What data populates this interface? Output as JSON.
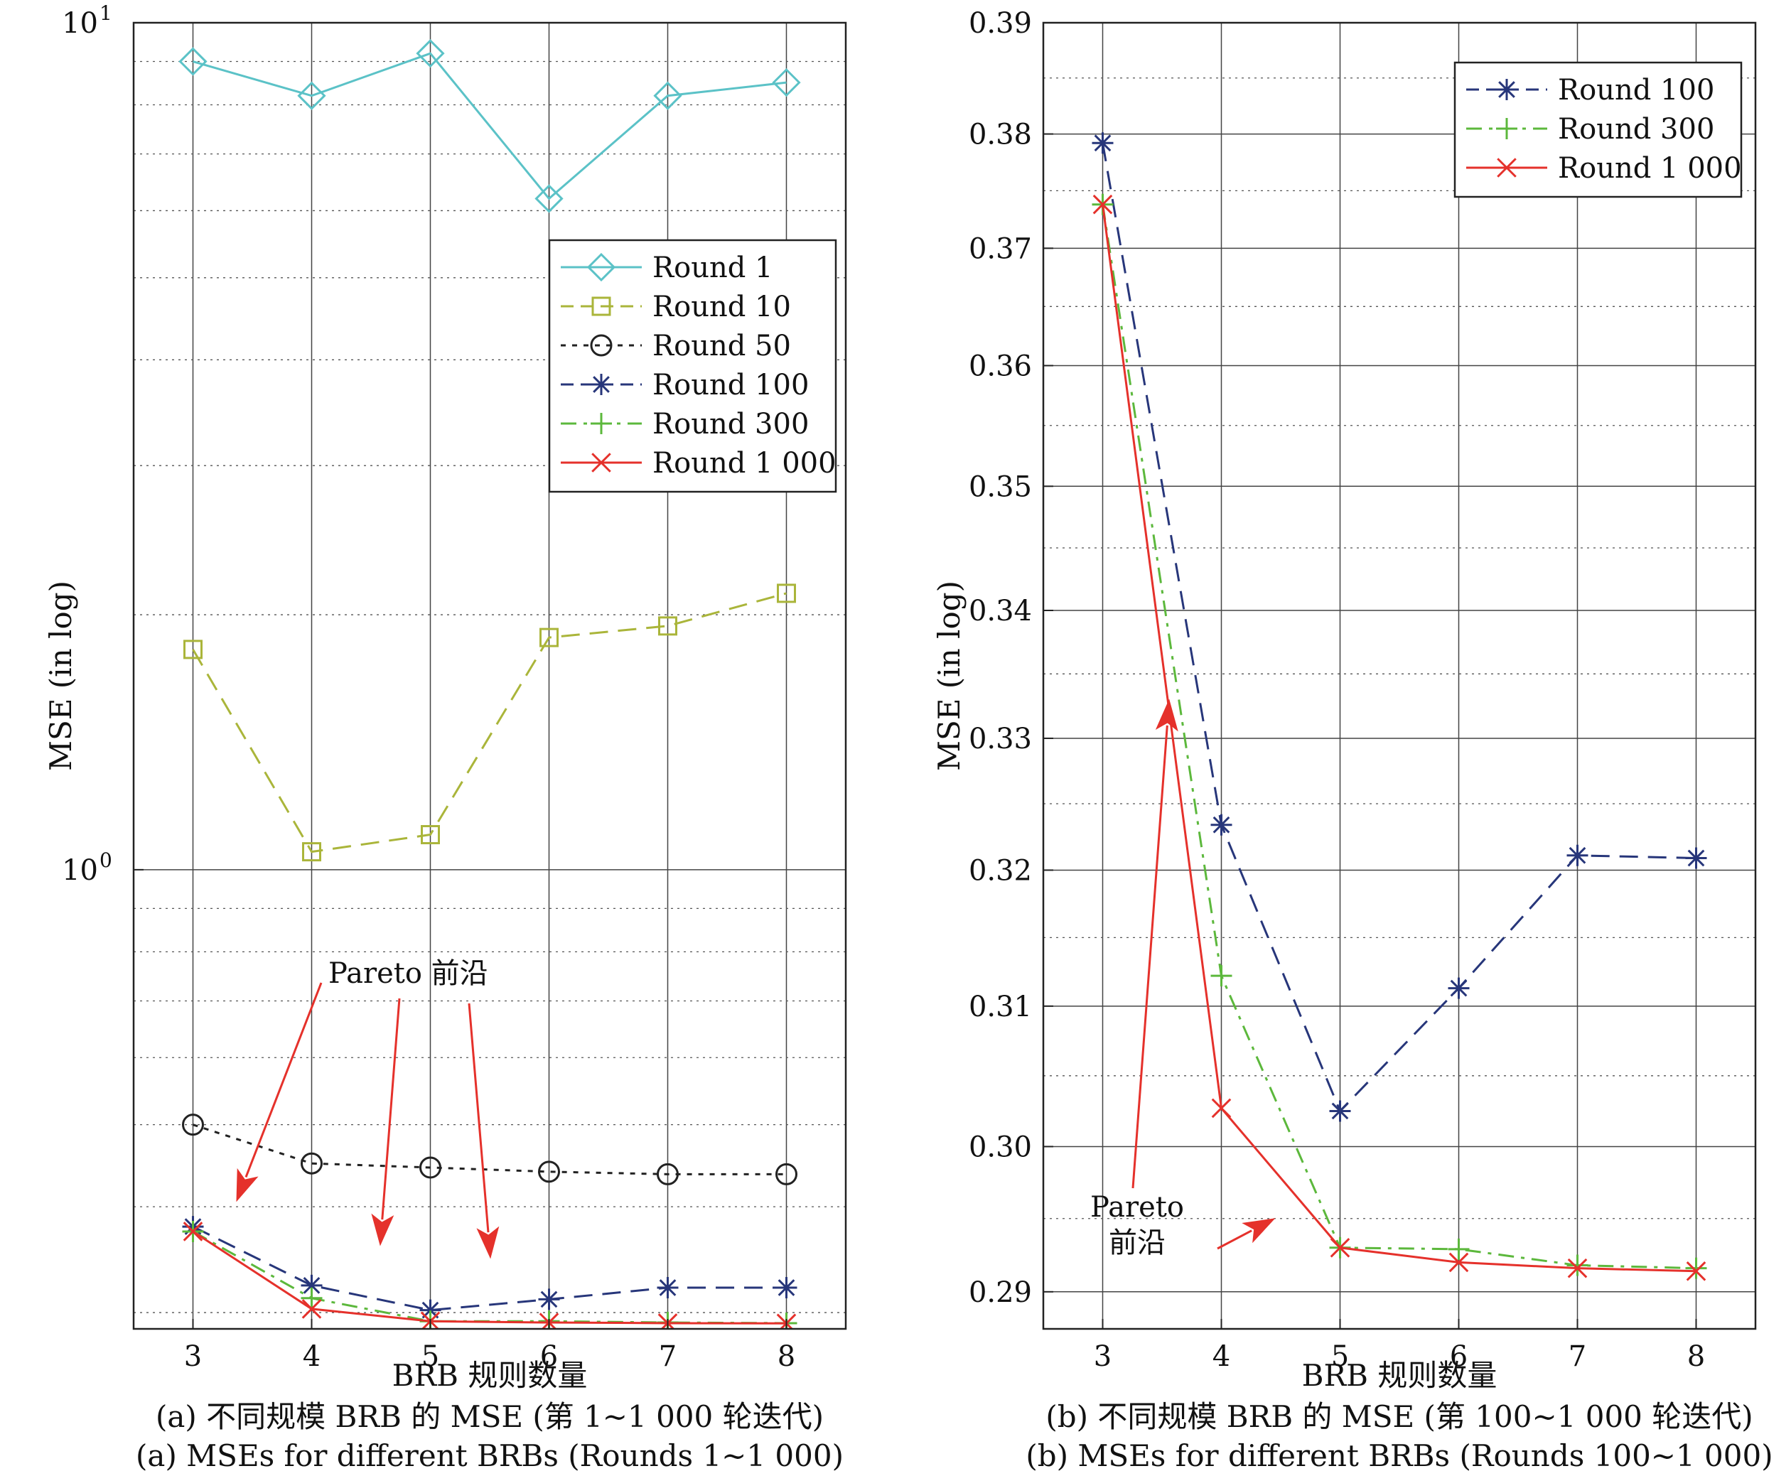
{
  "captions": {
    "left_cn": "(a) 不同规模 BRB 的 MSE (第 1~1 000 轮迭代)",
    "left_en": "(a) MSEs for different BRBs (Rounds 1~1 000)",
    "right_cn": "(b) 不同规模 BRB 的 MSE (第 100~1 000 轮迭代)",
    "right_en": "(b) MSEs for different BRBs (Rounds 100~1 000)"
  },
  "colors": {
    "round1": "#5bc2c7",
    "round10": "#aab53a",
    "round50": "#222222",
    "round100": "#27367a",
    "round300": "#5cb83c",
    "round1000": "#e5312b",
    "arrow": "#e5312b"
  },
  "chart_data": [
    {
      "type": "line",
      "xlabel": "BRB 规则数量",
      "ylabel": "MSE (in log)",
      "yscale": "log",
      "ylim": [
        0.287,
        10
      ],
      "xlim": [
        2.5,
        8.5
      ],
      "x": [
        3,
        4,
        5,
        6,
        7,
        8
      ],
      "x_tick_labels": [
        "3",
        "4",
        "5",
        "6",
        "7",
        "8"
      ],
      "y_tick_labels": [
        {
          "value": 10,
          "base": "10",
          "exp": "1"
        },
        {
          "value": 1,
          "base": "10",
          "exp": "0"
        }
      ],
      "grid": true,
      "legend_position": "upper-right",
      "series": [
        {
          "name": "Round 1",
          "color_key": "round1",
          "marker": "diamond",
          "dash": "solid",
          "values": [
            9.0,
            8.2,
            9.2,
            6.2,
            8.2,
            8.5
          ]
        },
        {
          "name": "Round 10",
          "color_key": "round10",
          "marker": "square",
          "dash": "dashed",
          "values": [
            1.82,
            1.05,
            1.1,
            1.88,
            1.94,
            2.12
          ]
        },
        {
          "name": "Round 50",
          "color_key": "round50",
          "marker": "circle",
          "dash": "dotted",
          "values": [
            0.5,
            0.45,
            0.445,
            0.44,
            0.437,
            0.437
          ]
        },
        {
          "name": "Round 100",
          "color_key": "round100",
          "marker": "asterisk",
          "dash": "dashed",
          "values": [
            0.379,
            0.323,
            0.302,
            0.311,
            0.321,
            0.321
          ]
        },
        {
          "name": "Round 300",
          "color_key": "round300",
          "marker": "plus",
          "dash": "dashdot",
          "values": [
            0.374,
            0.312,
            0.293,
            0.293,
            0.292,
            0.2915
          ]
        },
        {
          "name": "Round 1 000",
          "color_key": "round1000",
          "marker": "x",
          "dash": "solid",
          "values": [
            0.374,
            0.303,
            0.293,
            0.292,
            0.2915,
            0.2913
          ]
        }
      ],
      "annotation": {
        "text": "Pareto 前沿"
      }
    },
    {
      "type": "line",
      "xlabel": "BRB 规则数量",
      "ylabel": "MSE (in log)",
      "yscale": "log",
      "ylim": [
        0.2875,
        0.39
      ],
      "xlim": [
        2.5,
        8.5
      ],
      "x": [
        3,
        4,
        5,
        6,
        7,
        8
      ],
      "x_tick_labels": [
        "3",
        "4",
        "5",
        "6",
        "7",
        "8"
      ],
      "y_tick_labels": [
        "0.29",
        "0.30",
        "0.31",
        "0.32",
        "0.33",
        "0.34",
        "0.35",
        "0.36",
        "0.37",
        "0.38",
        "0.39"
      ],
      "y_tick_values": [
        0.29,
        0.3,
        0.31,
        0.32,
        0.33,
        0.34,
        0.35,
        0.36,
        0.37,
        0.38,
        0.39
      ],
      "grid": true,
      "legend_position": "upper-right",
      "series": [
        {
          "name": "Round 100",
          "color_key": "round100",
          "marker": "asterisk",
          "dash": "dashed",
          "values": [
            0.3792,
            0.3234,
            0.3025,
            0.3113,
            0.3211,
            0.3209
          ]
        },
        {
          "name": "Round 300",
          "color_key": "round300",
          "marker": "plus",
          "dash": "dashdot",
          "values": [
            0.3738,
            0.3122,
            0.293,
            0.2929,
            0.2918,
            0.2916
          ]
        },
        {
          "name": "Round 1 000",
          "color_key": "round1000",
          "marker": "x",
          "dash": "solid",
          "values": [
            0.3738,
            0.3027,
            0.293,
            0.292,
            0.2916,
            0.2914
          ]
        }
      ],
      "annotation": {
        "line1": "Pareto",
        "line2": "前沿"
      }
    }
  ]
}
